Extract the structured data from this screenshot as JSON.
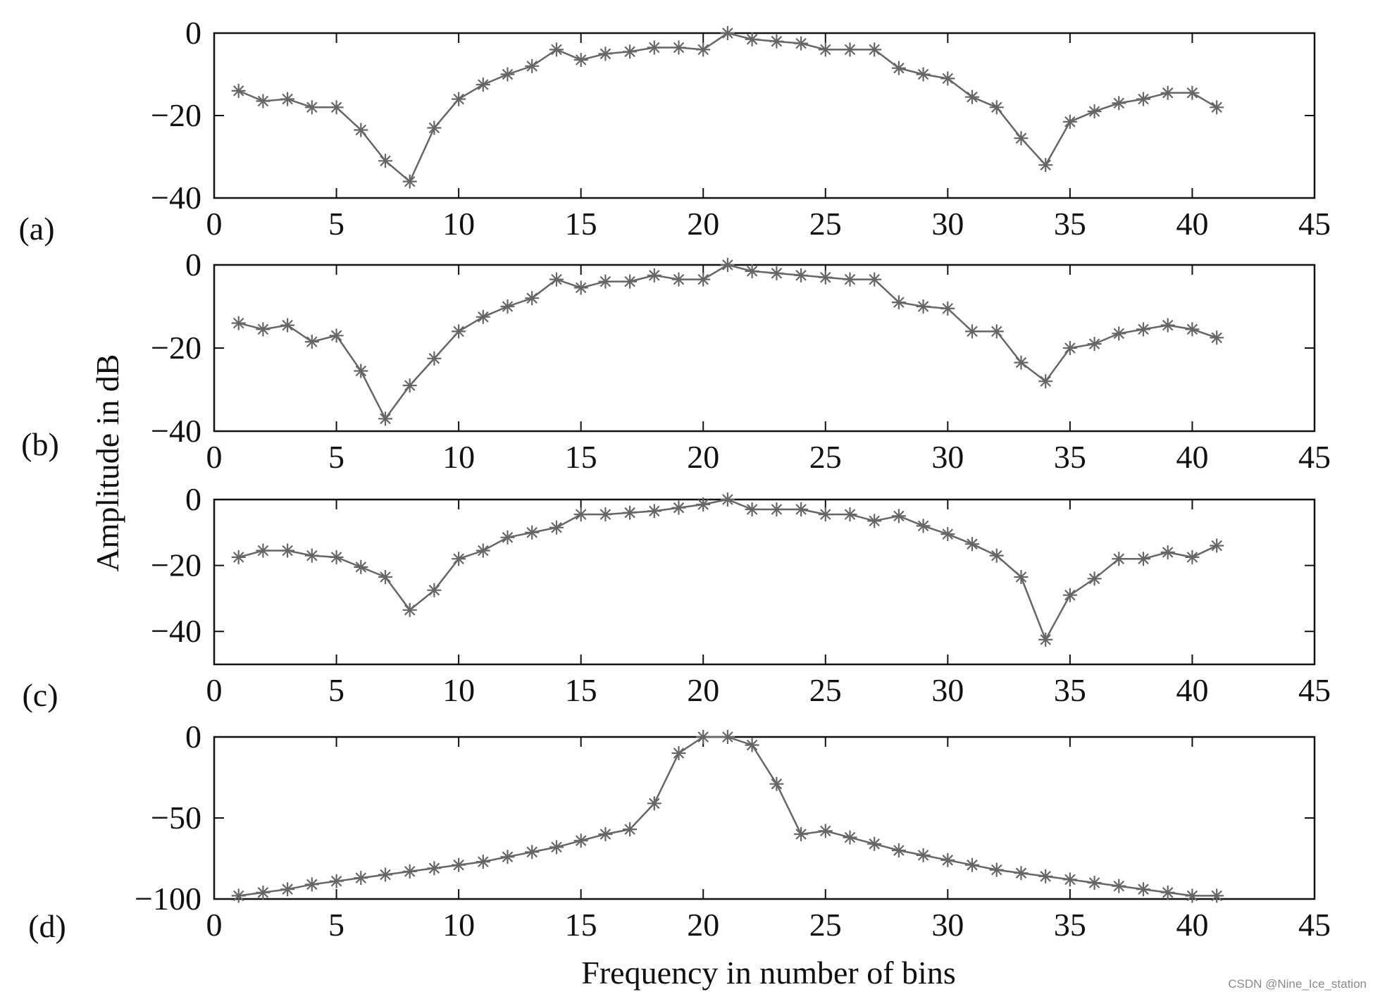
{
  "chart_data": [
    {
      "type": "line",
      "panel_label": "(a)",
      "x": [
        1,
        2,
        3,
        4,
        5,
        6,
        7,
        8,
        9,
        10,
        11,
        12,
        13,
        14,
        15,
        16,
        17,
        18,
        19,
        20,
        21,
        22,
        23,
        24,
        25,
        26,
        27,
        28,
        29,
        30,
        31,
        32,
        33,
        34,
        35,
        36,
        37,
        38,
        39,
        40,
        41
      ],
      "series": [
        {
          "values": [
            -14,
            -16.5,
            -16,
            -18,
            -18,
            -23.5,
            -31,
            -36,
            -23,
            -16,
            -12.5,
            -10,
            -8,
            -4,
            -6.5,
            -5,
            -4.5,
            -3.5,
            -3.5,
            -4,
            0,
            -1.5,
            -2,
            -2.5,
            -4,
            -4,
            -4,
            -8.5,
            -10,
            -11,
            -15.5,
            -18,
            -25.5,
            -32,
            -21.5,
            -19,
            -17,
            -16,
            -14.5,
            -14.5,
            -18
          ],
          "marker": "asterisk"
        }
      ],
      "xlim": [
        0,
        45
      ],
      "ylim": [
        -40,
        0
      ],
      "xticks": [
        "0",
        "5",
        "10",
        "15",
        "20",
        "25",
        "30",
        "35",
        "40",
        "45"
      ],
      "yticks": [
        "0",
        "−20",
        "−40"
      ],
      "grid": false
    },
    {
      "type": "line",
      "panel_label": "(b)",
      "x": [
        1,
        2,
        3,
        4,
        5,
        6,
        7,
        8,
        9,
        10,
        11,
        12,
        13,
        14,
        15,
        16,
        17,
        18,
        19,
        20,
        21,
        22,
        23,
        24,
        25,
        26,
        27,
        28,
        29,
        30,
        31,
        32,
        33,
        34,
        35,
        36,
        37,
        38,
        39,
        40,
        41
      ],
      "series": [
        {
          "values": [
            -14,
            -15.5,
            -14.5,
            -18.5,
            -17,
            -25.5,
            -37,
            -29,
            -22.5,
            -16,
            -12.5,
            -10,
            -8,
            -3.5,
            -5.5,
            -4,
            -4,
            -2.5,
            -3.5,
            -3.5,
            0,
            -1.5,
            -2,
            -2.5,
            -3,
            -3.5,
            -3.5,
            -9,
            -10,
            -10.5,
            -16,
            -16,
            -23.5,
            -28,
            -20,
            -19,
            -16.5,
            -15.5,
            -14.5,
            -15.5,
            -17.5
          ],
          "marker": "asterisk"
        }
      ],
      "xlim": [
        0,
        45
      ],
      "ylim": [
        -40,
        0
      ],
      "xticks": [
        "0",
        "5",
        "10",
        "15",
        "20",
        "25",
        "30",
        "35",
        "40",
        "45"
      ],
      "yticks": [
        "0",
        "−20",
        "−40"
      ],
      "grid": false
    },
    {
      "type": "line",
      "panel_label": "(c)",
      "x": [
        1,
        2,
        3,
        4,
        5,
        6,
        7,
        8,
        9,
        10,
        11,
        12,
        13,
        14,
        15,
        16,
        17,
        18,
        19,
        20,
        21,
        22,
        23,
        24,
        25,
        26,
        27,
        28,
        29,
        30,
        31,
        32,
        33,
        34,
        35,
        36,
        37,
        38,
        39,
        40,
        41
      ],
      "series": [
        {
          "values": [
            -17.5,
            -15.5,
            -15.5,
            -17,
            -17.5,
            -20.5,
            -23.5,
            -33.5,
            -27.5,
            -18,
            -15.5,
            -11.5,
            -10,
            -8.5,
            -4.5,
            -4.5,
            -4,
            -3.5,
            -2.5,
            -1.5,
            0,
            -3,
            -3,
            -3,
            -4.5,
            -4.5,
            -6.5,
            -5,
            -8,
            -10.5,
            -13.5,
            -17,
            -23.5,
            -42.5,
            -29,
            -24,
            -18,
            -18,
            -16,
            -17.5,
            -14
          ],
          "marker": "asterisk"
        }
      ],
      "xlim": [
        0,
        45
      ],
      "ylim": [
        -50,
        0
      ],
      "xticks": [
        "0",
        "5",
        "10",
        "15",
        "20",
        "25",
        "30",
        "35",
        "40",
        "45"
      ],
      "yticks": [
        "0",
        "−20",
        "−40"
      ],
      "grid": false
    },
    {
      "type": "line",
      "panel_label": "(d)",
      "x": [
        1,
        2,
        3,
        4,
        5,
        6,
        7,
        8,
        9,
        10,
        11,
        12,
        13,
        14,
        15,
        16,
        17,
        18,
        19,
        20,
        21,
        22,
        23,
        24,
        25,
        26,
        27,
        28,
        29,
        30,
        31,
        32,
        33,
        34,
        35,
        36,
        37,
        38,
        39,
        40,
        41
      ],
      "series": [
        {
          "values": [
            -98,
            -96,
            -94,
            -91,
            -89,
            -87,
            -85,
            -83,
            -81,
            -79,
            -77,
            -74,
            -71,
            -68,
            -64,
            -60,
            -57,
            -41,
            -10,
            0,
            0,
            -5,
            -29,
            -60,
            -58,
            -62,
            -66,
            -70,
            -73,
            -76,
            -79,
            -82,
            -84,
            -86,
            -88,
            -90,
            -92,
            -94,
            -96,
            -98,
            -98
          ],
          "marker": "asterisk"
        }
      ],
      "xlim": [
        0,
        45
      ],
      "ylim": [
        -100,
        0
      ],
      "xticks": [
        "0",
        "5",
        "10",
        "15",
        "20",
        "25",
        "30",
        "35",
        "40",
        "45"
      ],
      "yticks": [
        "0",
        "−50",
        "−100"
      ],
      "grid": false
    }
  ],
  "ylabel": "Amplitude in dB",
  "xlabel": "Frequency in number of bins",
  "watermark": "CSDN @Nine_Ice_station",
  "colors": {
    "line": "#666666",
    "axes": "#111111"
  }
}
